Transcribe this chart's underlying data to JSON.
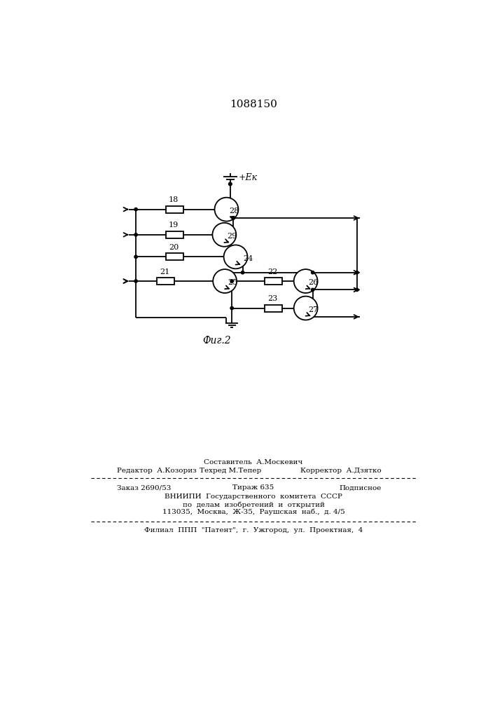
{
  "patent_number": "1088150",
  "fig_label": "Фиг.2",
  "power_label": "+Eк",
  "background_color": "#ffffff",
  "line_color": "#000000",
  "text_color": "#000000",
  "footer_sestavitel": "Составитель  А.Москевич",
  "footer_redaktor": "Редактор  А.Козориз",
  "footer_tehred": "Техред М.Тепер",
  "footer_korrektor": "Корректор  А.Дзятко",
  "footer_zakaz": "Заказ 2690/53",
  "footer_tirazh": "Тираж 635",
  "footer_podpisnoe": "Подписное",
  "footer_vniip1": "ВНИИПИ  Государственного  комитета  СССР",
  "footer_vniip2": "по  делам  изобретений  и  открытий",
  "footer_addr": "113035,  Москва,  Ж-35,  Раушская  наб.,  д. 4/5",
  "footer_filial": "Филиал  ППП  \"Патент\",  г.  Ужгород,  ул.  Проектная,  4"
}
